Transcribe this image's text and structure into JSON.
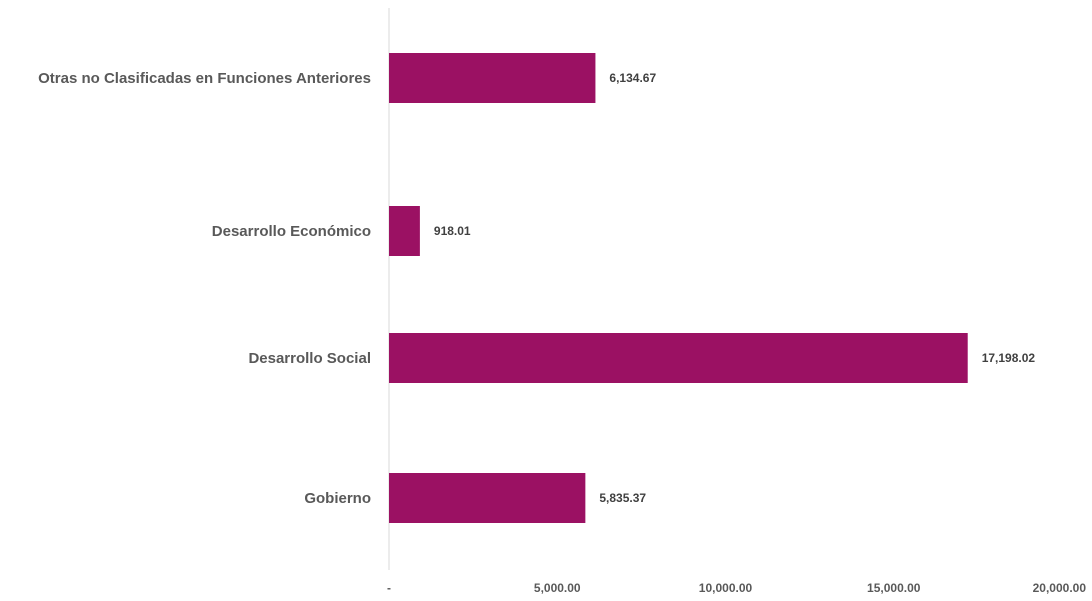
{
  "chart_data": {
    "type": "bar",
    "orientation": "horizontal",
    "categories": [
      "Otras no Clasificadas en Funciones Anteriores",
      "Desarrollo Económico",
      "Desarrollo Social",
      "Gobierno"
    ],
    "values": [
      6134.67,
      918.01,
      17198.02,
      5835.37
    ],
    "value_labels": [
      "6,134.67",
      "918.01",
      "17,198.02",
      "5,835.37"
    ],
    "xlim": [
      0,
      20000
    ],
    "x_ticks": [
      0,
      5000,
      10000,
      15000,
      20000
    ],
    "x_tick_labels": [
      "-",
      "5,000.00",
      "10,000.00",
      "15,000.00",
      "20,000.00"
    ],
    "bar_color": "#9B1163",
    "grid": false,
    "legend": "none",
    "title": "",
    "xlabel": "",
    "ylabel": ""
  }
}
